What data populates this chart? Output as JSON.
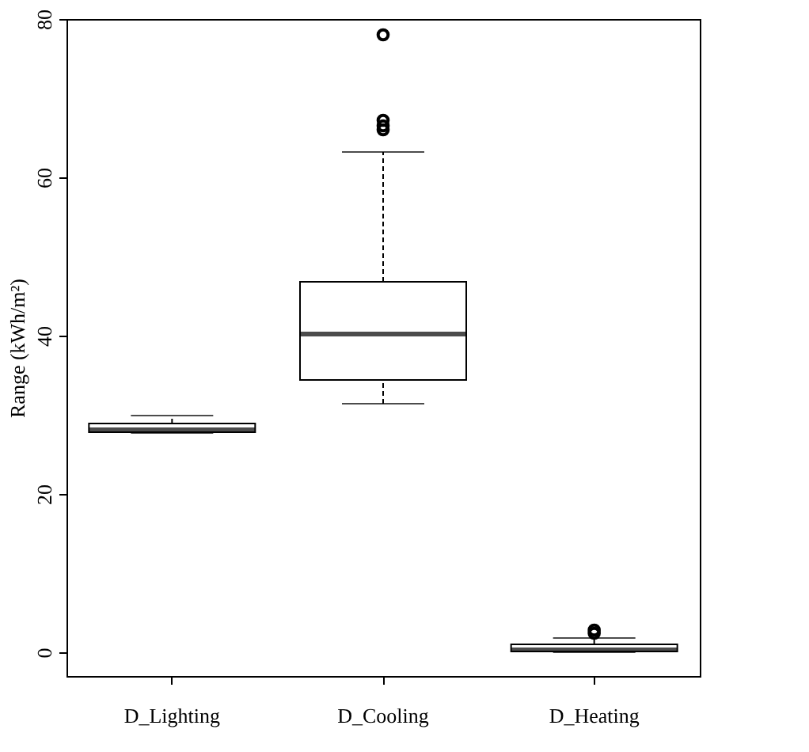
{
  "chart_data": {
    "type": "box",
    "ylabel": "Range (kWh/m²)",
    "categories": [
      "D_Lighting",
      "D_Cooling",
      "D_Heating"
    ],
    "boxes": [
      {
        "low": 27.7,
        "q1": 27.8,
        "median": 28.1,
        "q3": 28.9,
        "high": 29.9
      },
      {
        "low": 31.4,
        "q1": 34.4,
        "median": 40.2,
        "q3": 46.8,
        "high": 63.2,
        "outliers": [
          78,
          67.2,
          66.5,
          66
        ]
      },
      {
        "low": 0,
        "q1": 0.1,
        "median": 0.3,
        "q3": 1,
        "high": 1.8,
        "outliers": [
          2.4,
          2.8
        ]
      }
    ],
    "ylim": [
      -3,
      80
    ],
    "yticks": [
      0,
      20,
      40,
      60,
      80
    ],
    "grid": false
  }
}
